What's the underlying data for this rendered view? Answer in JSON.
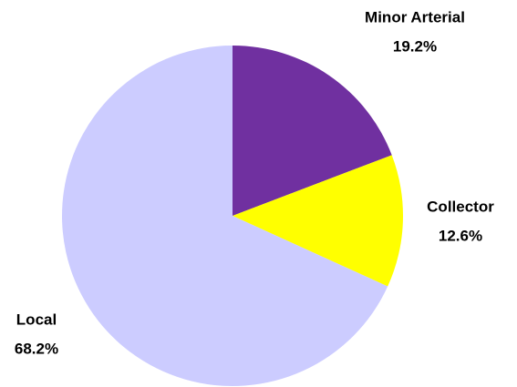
{
  "chart_data": {
    "type": "pie",
    "categories": [
      "Minor Arterial",
      "Collector",
      "Local"
    ],
    "values": [
      19.2,
      12.6,
      68.2
    ],
    "value_labels": [
      "19.2%",
      "12.6%",
      "68.2%"
    ],
    "colors": [
      "#7030a0",
      "#ffff00",
      "#ccccff"
    ]
  }
}
